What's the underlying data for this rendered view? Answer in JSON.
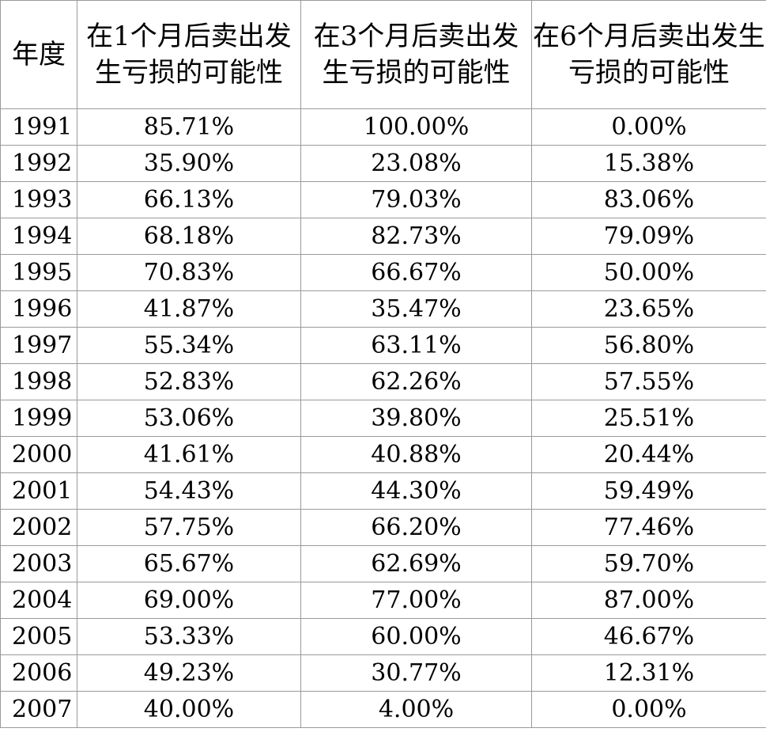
{
  "chart_data": {
    "type": "table",
    "columns": [
      "年度",
      "在1个月后卖出发生亏损的可能性",
      "在3个月后卖出发生亏损的可能性",
      "在6个月后卖出发生亏损的可能性"
    ],
    "rows": [
      [
        "1991",
        "85.71%",
        "100.00%",
        "0.00%"
      ],
      [
        "1992",
        "35.90%",
        "23.08%",
        "15.38%"
      ],
      [
        "1993",
        "66.13%",
        "79.03%",
        "83.06%"
      ],
      [
        "1994",
        "68.18%",
        "82.73%",
        "79.09%"
      ],
      [
        "1995",
        "70.83%",
        "66.67%",
        "50.00%"
      ],
      [
        "1996",
        "41.87%",
        "35.47%",
        "23.65%"
      ],
      [
        "1997",
        "55.34%",
        "63.11%",
        "56.80%"
      ],
      [
        "1998",
        "52.83%",
        "62.26%",
        "57.55%"
      ],
      [
        "1999",
        "53.06%",
        "39.80%",
        "25.51%"
      ],
      [
        "2000",
        "41.61%",
        "40.88%",
        "20.44%"
      ],
      [
        "2001",
        "54.43%",
        "44.30%",
        "59.49%"
      ],
      [
        "2002",
        "57.75%",
        "66.20%",
        "77.46%"
      ],
      [
        "2003",
        "65.67%",
        "62.69%",
        "59.70%"
      ],
      [
        "2004",
        "69.00%",
        "77.00%",
        "87.00%"
      ],
      [
        "2005",
        "53.33%",
        "60.00%",
        "46.67%"
      ],
      [
        "2006",
        "49.23%",
        "30.77%",
        "12.31%"
      ],
      [
        "2007",
        "40.00%",
        "4.00%",
        "0.00%"
      ]
    ],
    "border_color": "#9a9a9a",
    "text_color": "#000000",
    "background": "#ffffff"
  }
}
